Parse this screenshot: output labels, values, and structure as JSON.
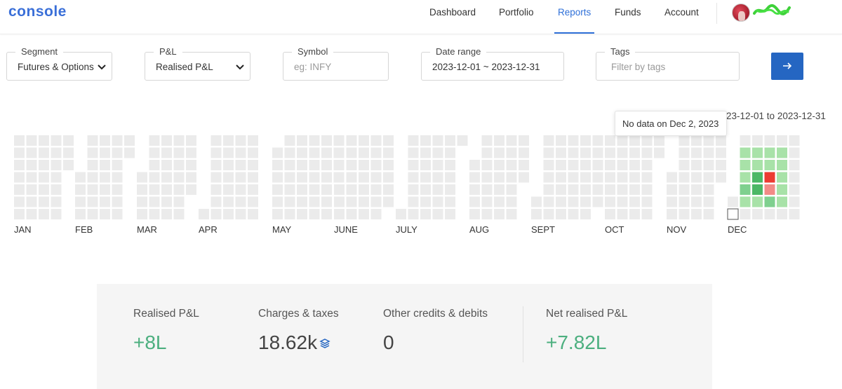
{
  "header": {
    "logo": "console",
    "nav": [
      {
        "label": "Dashboard",
        "active": false
      },
      {
        "label": "Portfolio",
        "active": false
      },
      {
        "label": "Reports",
        "active": true
      },
      {
        "label": "Funds",
        "active": false
      },
      {
        "label": "Account",
        "active": false
      }
    ],
    "accent": "#2f70d8"
  },
  "filters": {
    "segment": {
      "label": "Segment",
      "value": "Futures & Options"
    },
    "pnl": {
      "label": "P&L",
      "value": "Realised P&L"
    },
    "symbol": {
      "label": "Symbol",
      "placeholder": "eg: INFY"
    },
    "date_range": {
      "label": "Date range",
      "value": "2023-12-01 ~ 2023-12-31"
    },
    "tags": {
      "label": "Tags",
      "placeholder": "Filter by tags"
    },
    "submit_icon": "arrow-right-icon"
  },
  "heatmap": {
    "range_text": "2023-12-01 to 2023-12-31",
    "tooltip": "No data on Dec 2, 2023",
    "months": [
      "JAN",
      "FEB",
      "MAR",
      "APR",
      "MAY",
      "JUNE",
      "JULY",
      "AUG",
      "SEPT",
      "OCT",
      "NOV",
      "DEC"
    ],
    "colors": {
      "empty": "#ebebeb",
      "profit_light": "#a8e2a8",
      "profit_mid": "#7fd08f",
      "profit_strong": "#4cb866",
      "loss_light": "#f28b87",
      "loss_strong": "#ec3b32"
    },
    "december": [
      {
        "date": "Dec 2, 2023",
        "level": "none-selected"
      },
      {
        "date": "Dec 4, 2023",
        "level": "profit_light"
      },
      {
        "date": "Dec 5, 2023",
        "level": "profit_light"
      },
      {
        "date": "Dec 6, 2023",
        "level": "profit_light"
      },
      {
        "date": "Dec 7, 2023",
        "level": "profit_mid"
      },
      {
        "date": "Dec 8, 2023",
        "level": "profit_light"
      },
      {
        "date": "Dec 11, 2023",
        "level": "profit_light"
      },
      {
        "date": "Dec 12, 2023",
        "level": "profit_light"
      },
      {
        "date": "Dec 13, 2023",
        "level": "profit_strong"
      },
      {
        "date": "Dec 14, 2023",
        "level": "profit_strong"
      },
      {
        "date": "Dec 15, 2023",
        "level": "profit_light"
      },
      {
        "date": "Dec 18, 2023",
        "level": "profit_light"
      },
      {
        "date": "Dec 19, 2023",
        "level": "profit_light"
      },
      {
        "date": "Dec 20, 2023",
        "level": "loss_strong"
      },
      {
        "date": "Dec 21, 2023",
        "level": "loss_light"
      },
      {
        "date": "Dec 22, 2023",
        "level": "profit_mid"
      }
    ]
  },
  "summary": {
    "realised": {
      "label": "Realised P&L",
      "value": "+8L"
    },
    "charges": {
      "label": "Charges & taxes",
      "value": "18.62k",
      "icon": "layers-icon"
    },
    "other": {
      "label": "Other credits & debits",
      "value": "0"
    },
    "net": {
      "label": "Net realised P&L",
      "value": "+7.82L"
    },
    "positive_color": "#4caf7f"
  }
}
